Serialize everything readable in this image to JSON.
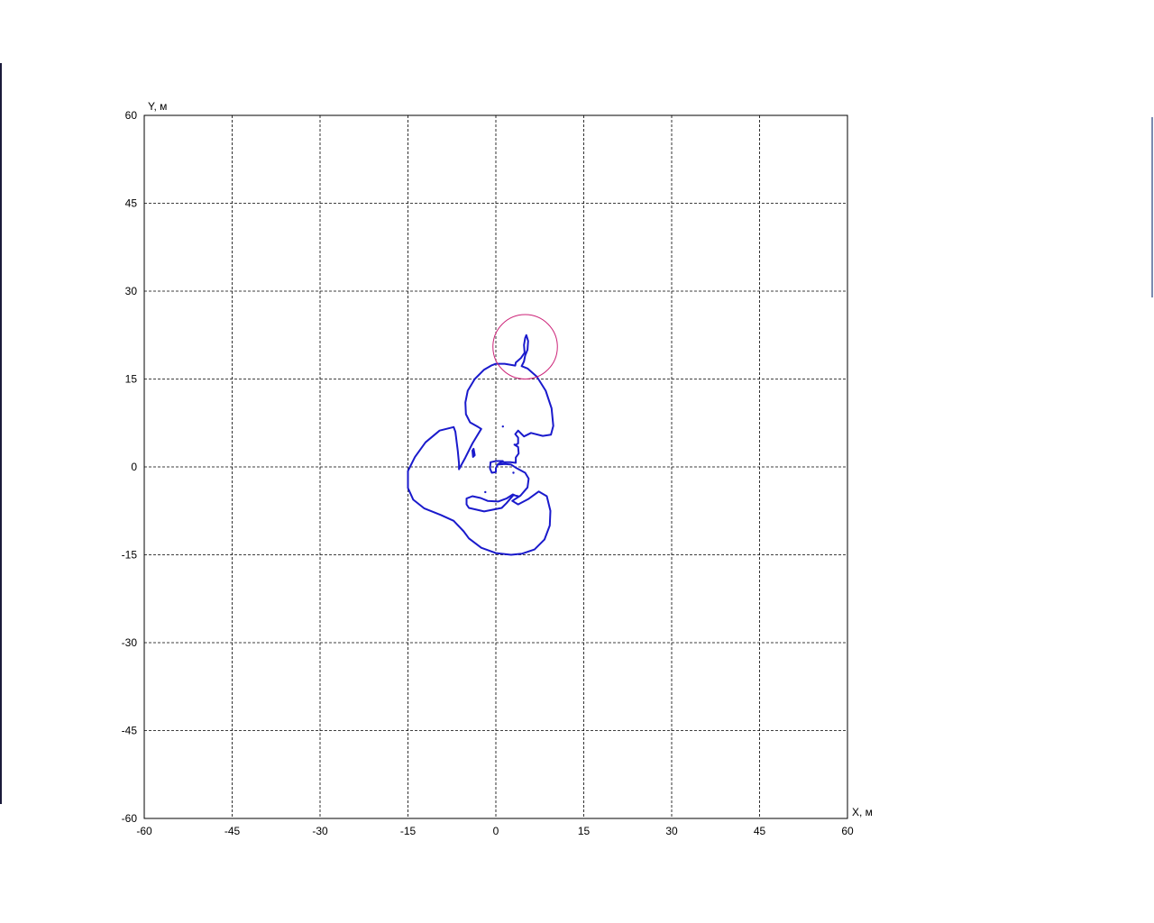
{
  "chart_data": {
    "type": "line",
    "title": "",
    "xlabel": "X, м",
    "ylabel": "Y, м",
    "xlim": [
      -60,
      60
    ],
    "ylim": [
      -60,
      60
    ],
    "x_ticks": [
      -60,
      -45,
      -30,
      -15,
      0,
      15,
      30,
      45,
      60
    ],
    "y_ticks": [
      -60,
      -45,
      -30,
      -15,
      0,
      15,
      30,
      45,
      60
    ],
    "x_tick_labels": [
      "-60",
      "-45",
      "-30",
      "-15",
      "0",
      "15",
      "30",
      "45",
      "60"
    ],
    "y_tick_labels": [
      "-60",
      "-45",
      "-30",
      "-15",
      "0",
      "15",
      "30",
      "45",
      "60"
    ],
    "grid": true,
    "grid_style": "dashed",
    "colors": {
      "contour": "#1a1acc",
      "circle": "#cc2277",
      "grid": "#000000",
      "frame": "#000000"
    },
    "circle": {
      "center": [
        5,
        20.5
      ],
      "radius": 5.5
    },
    "series": [
      {
        "values": [
          [
            4.8,
            20.8
          ],
          [
            5.0,
            22.0
          ],
          [
            5.2,
            22.5
          ],
          [
            5.5,
            21.5
          ],
          [
            5.4,
            20.0
          ],
          [
            5.0,
            19.0
          ],
          [
            4.8,
            18.0
          ],
          [
            4.4,
            17.2
          ],
          [
            5.4,
            16.8
          ],
          [
            7.0,
            15.4
          ],
          [
            8.5,
            13.0
          ],
          [
            9.5,
            10.0
          ],
          [
            9.8,
            7.0
          ],
          [
            9.4,
            5.5
          ],
          [
            8.0,
            5.3
          ],
          [
            6.0,
            5.8
          ],
          [
            4.8,
            5.2
          ],
          [
            3.8,
            6.2
          ],
          [
            3.3,
            5.6
          ],
          [
            3.8,
            5.0
          ],
          [
            3.8,
            4.0
          ],
          [
            3.3,
            3.7
          ],
          [
            3.8,
            3.4
          ],
          [
            3.9,
            2.3
          ],
          [
            3.4,
            1.6
          ],
          [
            3.4,
            0.7
          ],
          [
            2.5,
            0.8
          ],
          [
            1.0,
            0.8
          ],
          [
            0.3,
            0.4
          ],
          [
            1.6,
            0.5
          ],
          [
            2.6,
            0.4
          ],
          [
            3.5,
            -0.2
          ],
          [
            5.0,
            -1.0
          ],
          [
            5.6,
            -2.0
          ],
          [
            5.4,
            -3.5
          ],
          [
            4.2,
            -4.9
          ],
          [
            2.8,
            -5.8
          ],
          [
            3.8,
            -6.4
          ],
          [
            5.5,
            -5.5
          ],
          [
            7.3,
            -4.2
          ],
          [
            8.7,
            -5.0
          ],
          [
            9.3,
            -7.5
          ],
          [
            9.2,
            -10.0
          ],
          [
            8.3,
            -12.4
          ],
          [
            6.6,
            -14.1
          ],
          [
            4.5,
            -14.8
          ],
          [
            2.6,
            -15.0
          ],
          [
            0.0,
            -14.7
          ],
          [
            -2.5,
            -13.8
          ],
          [
            -4.6,
            -12.2
          ],
          [
            -5.5,
            -11.0
          ],
          [
            -7.2,
            -9.2
          ],
          [
            -9.4,
            -8.2
          ],
          [
            -12.2,
            -7.1
          ],
          [
            -14.1,
            -5.6
          ],
          [
            -15.0,
            -3.6
          ],
          [
            -15.0,
            -0.7
          ],
          [
            -13.8,
            1.7
          ],
          [
            -12.0,
            4.2
          ],
          [
            -9.6,
            6.2
          ],
          [
            -7.2,
            6.8
          ],
          [
            -6.9,
            6.0
          ],
          [
            -6.5,
            2.7
          ],
          [
            -6.3,
            0.6
          ],
          [
            -6.3,
            -0.4
          ],
          [
            -5.2,
            1.6
          ],
          [
            -4.0,
            4.0
          ],
          [
            -2.5,
            6.5
          ],
          [
            -3.0,
            6.8
          ],
          [
            -4.4,
            7.6
          ],
          [
            -5.1,
            9.0
          ],
          [
            -5.2,
            11.0
          ],
          [
            -4.8,
            13.0
          ],
          [
            -3.6,
            15.0
          ],
          [
            -2.0,
            16.6
          ],
          [
            -0.8,
            17.3
          ],
          [
            0.0,
            17.6
          ],
          [
            1.5,
            17.6
          ],
          [
            3.3,
            17.3
          ],
          [
            3.4,
            17.8
          ],
          [
            4.3,
            18.6
          ],
          [
            4.9,
            19.5
          ],
          [
            4.8,
            20.8
          ]
        ]
      },
      {
        "values": [
          [
            -0.9,
            0.8
          ],
          [
            -1.0,
            -0.3
          ],
          [
            -0.7,
            -1.0
          ],
          [
            0.0,
            -0.9
          ],
          [
            0.0,
            -0.2
          ],
          [
            0.3,
            0.4
          ],
          [
            1.2,
            1.0
          ],
          [
            0.0,
            1.0
          ],
          [
            -0.9,
            0.8
          ]
        ]
      },
      {
        "values": [
          [
            3.8,
            -5.0
          ],
          [
            3.0,
            -4.8
          ],
          [
            1.8,
            -6.2
          ],
          [
            1.0,
            -7.0
          ],
          [
            -2.0,
            -7.6
          ],
          [
            -4.6,
            -7.0
          ],
          [
            -5.0,
            -6.4
          ],
          [
            -5.0,
            -5.4
          ],
          [
            -4.0,
            -5.0
          ],
          [
            -2.6,
            -5.3
          ],
          [
            -1.4,
            -5.8
          ],
          [
            0.4,
            -5.9
          ],
          [
            1.8,
            -5.4
          ],
          [
            2.9,
            -4.7
          ],
          [
            3.6,
            -5.0
          ],
          [
            3.8,
            -5.0
          ]
        ]
      },
      {
        "values": [
          [
            -3.8,
            3.1
          ],
          [
            -3.6,
            2.0
          ],
          [
            -3.9,
            1.7
          ],
          [
            -4.0,
            2.8
          ],
          [
            -3.8,
            3.1
          ]
        ]
      }
    ],
    "markers": [
      [
        1.2,
        6.9
      ],
      [
        3.2,
        3.8
      ],
      [
        -1.8,
        -4.3
      ],
      [
        3.0,
        -1.0
      ]
    ]
  }
}
